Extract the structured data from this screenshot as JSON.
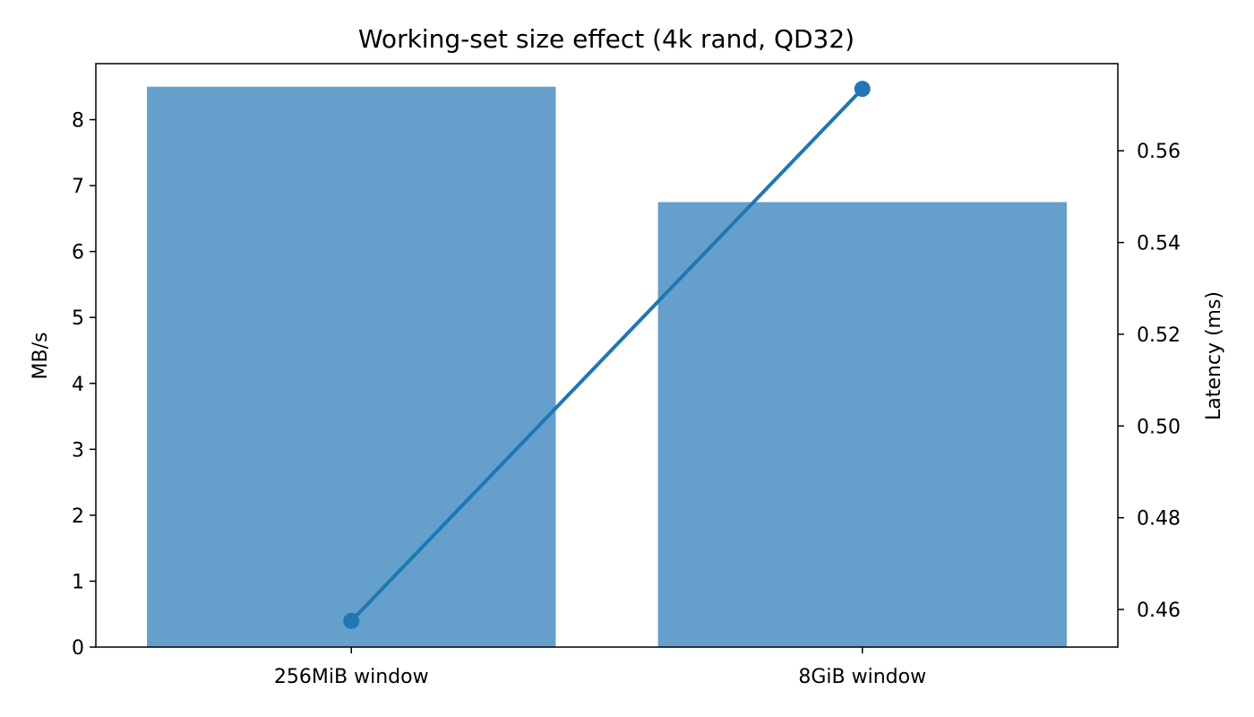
{
  "chart_data": {
    "type": "bar",
    "title": "Working-set size effect (4k rand, QD32)",
    "categories": [
      "256MiB window",
      "8GiB window"
    ],
    "series": [
      {
        "axis": "left",
        "mark": "bar",
        "values": [
          8.5,
          6.75
        ],
        "color": "#64a0cb"
      },
      {
        "axis": "right",
        "mark": "line",
        "values": [
          0.4575,
          0.5735
        ],
        "color": "#1f77b4"
      }
    ],
    "ylabel": "MB/s",
    "ylim": [
      0,
      8.85
    ],
    "yticks": [
      "0",
      "1",
      "2",
      "3",
      "4",
      "5",
      "6",
      "7",
      "8"
    ],
    "y2label": "Latency (ms)",
    "y2lim": [
      0.4518,
      0.579
    ],
    "y2ticks": [
      "0.46",
      "0.48",
      "0.50",
      "0.52",
      "0.54",
      "0.56"
    ],
    "grid": false,
    "legend": false
  }
}
